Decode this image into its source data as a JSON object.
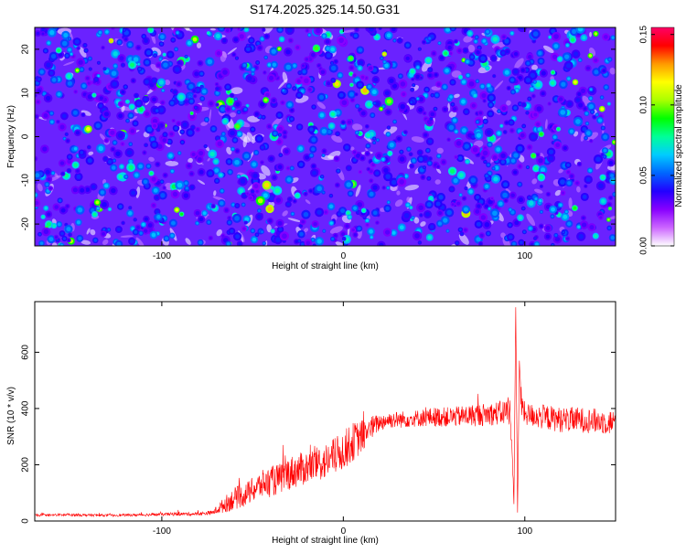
{
  "title": "S174.2025.325.14.50.G31",
  "chart_data": [
    {
      "type": "heatmap",
      "xlabel": "Height of straight line (km)",
      "ylabel": "Frequency (Hz)",
      "xlim": [
        -170,
        150
      ],
      "ylim": [
        -25,
        25
      ],
      "xticks": [
        -100,
        0,
        100
      ],
      "yticks": [
        -20,
        -10,
        0,
        10,
        20
      ],
      "colorbar": {
        "label": "Normalized spectral amplitude",
        "range": [
          0.0,
          0.155
        ],
        "ticks": [
          "0.00",
          "0.05",
          "0.10",
          "0.15"
        ],
        "tick_values": [
          0.0,
          0.05,
          0.1,
          0.15
        ],
        "colormap": [
          "#ffffff",
          "#cc66ff",
          "#8800ff",
          "#2200ff",
          "#0066ff",
          "#00ccff",
          "#00ff99",
          "#00ff00",
          "#aaff00",
          "#ffff00",
          "#ff9900",
          "#ff0000",
          "#ff0066"
        ]
      },
      "description_mode": "noise-like speckle field, amplitudes mostly 0.02–0.06 with sparse peaks to ~0.12",
      "background_color": "#6a22ff"
    },
    {
      "type": "line",
      "xlabel": "Height of straight line (km)",
      "ylabel": "SNR (10 * v/v)",
      "xlim": [
        -170,
        150
      ],
      "ylim": [
        0,
        780
      ],
      "xticks": [
        -100,
        0,
        100
      ],
      "yticks": [
        0,
        200,
        400,
        600
      ],
      "series": [
        {
          "name": "SNR",
          "color": "#ff0000",
          "x": [
            -170,
            -150,
            -130,
            -110,
            -90,
            -80,
            -72,
            -65,
            -60,
            -55,
            -50,
            -45,
            -40,
            -35,
            -30,
            -25,
            -20,
            -15,
            -10,
            -5,
            0,
            5,
            10,
            15,
            20,
            25,
            30,
            40,
            50,
            60,
            70,
            80,
            88,
            92,
            94,
            95,
            96,
            97,
            98,
            100,
            110,
            120,
            130,
            140,
            150
          ],
          "y": [
            20,
            22,
            20,
            22,
            25,
            25,
            30,
            60,
            80,
            90,
            110,
            130,
            140,
            150,
            170,
            180,
            190,
            200,
            210,
            230,
            250,
            280,
            300,
            330,
            350,
            360,
            360,
            365,
            370,
            370,
            375,
            380,
            385,
            400,
            60,
            760,
            30,
            570,
            420,
            380,
            370,
            360,
            360,
            355,
            350
          ],
          "noise": [
            4,
            5,
            4,
            5,
            6,
            6,
            8,
            30,
            40,
            40,
            45,
            50,
            55,
            55,
            60,
            60,
            60,
            60,
            65,
            65,
            70,
            70,
            60,
            45,
            30,
            30,
            30,
            30,
            35,
            35,
            40,
            40,
            45,
            60,
            0,
            0,
            0,
            0,
            60,
            40,
            45,
            45,
            45,
            45,
            45
          ]
        }
      ]
    }
  ]
}
